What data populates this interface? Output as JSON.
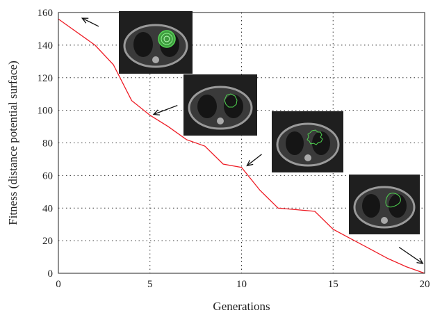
{
  "chart_data": {
    "type": "line",
    "title": "",
    "xlabel": "Generations",
    "ylabel": "Fitness (distance potential surface)",
    "xlim": [
      0,
      20
    ],
    "ylim": [
      0,
      160
    ],
    "xticks": [
      0,
      5,
      10,
      15,
      20
    ],
    "yticks": [
      0,
      20,
      40,
      60,
      80,
      100,
      120,
      140,
      160
    ],
    "grid": true,
    "legend": "none",
    "line_color": "#ee1c25",
    "series": [
      {
        "x": [
          0,
          2,
          3,
          4,
          5,
          6,
          7,
          8,
          9,
          10,
          11,
          12,
          14,
          15,
          16,
          17,
          18,
          19,
          20
        ],
        "values": [
          156,
          140,
          128,
          106,
          97,
          90,
          82,
          78,
          67,
          65,
          51,
          40,
          38,
          27,
          21,
          15,
          9,
          4,
          0
        ]
      }
    ],
    "annotations": [
      {
        "kind": "arrow",
        "from": [
          2.2,
          151.5
        ],
        "to": [
          1.3,
          156.5
        ],
        "image": "ct-slice-initial-contour"
      },
      {
        "kind": "arrow",
        "from": [
          6.5,
          103
        ],
        "to": [
          5.2,
          97.5
        ],
        "image": "ct-slice-contour-gen5"
      },
      {
        "kind": "arrow",
        "from": [
          11.1,
          73
        ],
        "to": [
          10.3,
          66
        ],
        "image": "ct-slice-contour-gen10"
      },
      {
        "kind": "arrow",
        "from": [
          18.6,
          16
        ],
        "to": [
          19.9,
          6
        ],
        "image": "ct-slice-contour-final"
      }
    ]
  }
}
